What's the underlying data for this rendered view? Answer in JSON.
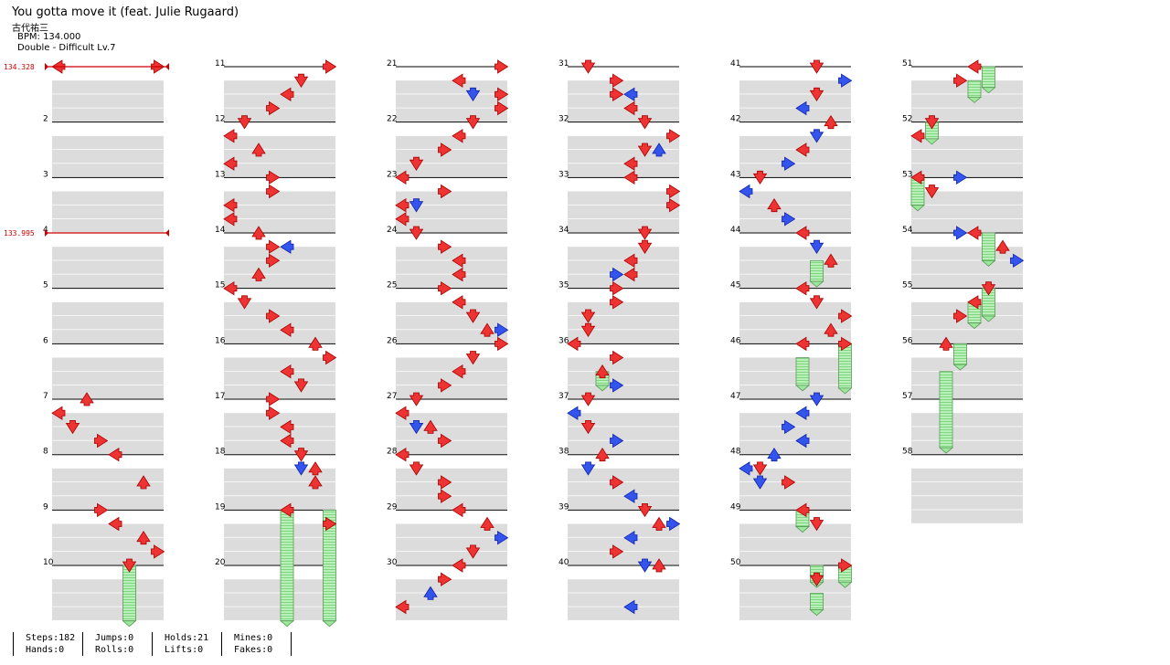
{
  "song": {
    "title": "You gotta move it (feat. Julie Rugaard)",
    "artist": "古代祐三",
    "bpm_line": "BPM: 134.000",
    "difficulty_line": "Double - Difficult Lv.7"
  },
  "bpm_markers": [
    {
      "measure": 1,
      "label": "134.328"
    },
    {
      "measure": 4,
      "label": "133.995"
    }
  ],
  "measures": [
    "2",
    "3",
    "4",
    "5",
    "6",
    "7",
    "8",
    "9",
    "10",
    "11",
    "12",
    "13",
    "14",
    "15",
    "16",
    "17",
    "18",
    "19",
    "20",
    "21",
    "22",
    "23",
    "24",
    "25",
    "26",
    "27",
    "28",
    "29",
    "30",
    "31",
    "32",
    "33",
    "34",
    "35",
    "36",
    "37",
    "38",
    "39",
    "40",
    "41",
    "42",
    "43",
    "44",
    "45",
    "46",
    "47",
    "48",
    "49",
    "50",
    "51",
    "52",
    "53",
    "54",
    "55",
    "56",
    "57",
    "58"
  ],
  "stats": [
    {
      "line1": "Steps:182",
      "line2": "Hands:0"
    },
    {
      "line1": "Jumps:0",
      "line2": "Rolls:0"
    },
    {
      "line1": "Holds:21",
      "line2": "Lifts:0"
    },
    {
      "line1": "Mines:0",
      "line2": "Fakes:0"
    }
  ],
  "colors": {
    "note_red": "#ee3333",
    "note_blue": "#3355ee",
    "hold_green": "#9be89b",
    "lane_gray": "#dcdcdc",
    "bpm_red": "#cc0000"
  }
}
